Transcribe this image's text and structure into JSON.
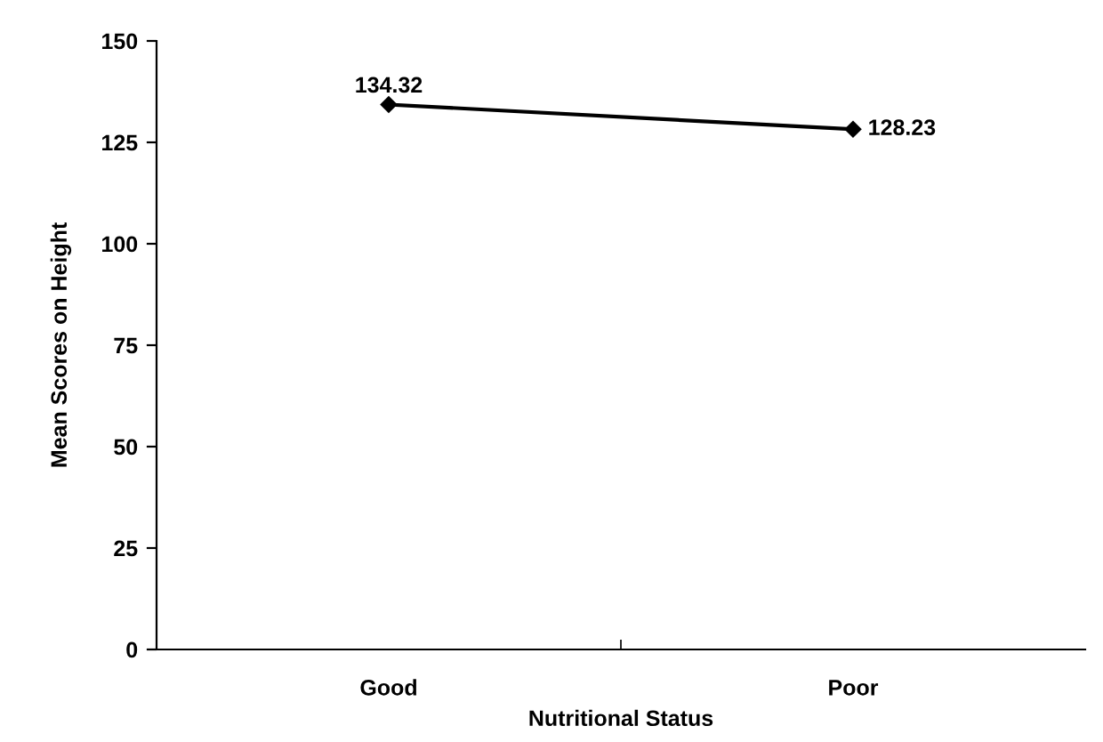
{
  "chart_data": {
    "type": "line",
    "xlabel": "Nutritional Status",
    "ylabel": "Mean Scores on Height",
    "categories": [
      "Good",
      "Poor"
    ],
    "series": [
      {
        "color": "#000000",
        "values": [
          134.32,
          128.23
        ]
      }
    ],
    "ylim": [
      0,
      150
    ],
    "yticks": [
      0,
      25,
      50,
      75,
      100,
      125,
      150
    ],
    "data_labels": true,
    "marker": "diamond",
    "line_style": "solid",
    "grid": false,
    "legend": false
  }
}
